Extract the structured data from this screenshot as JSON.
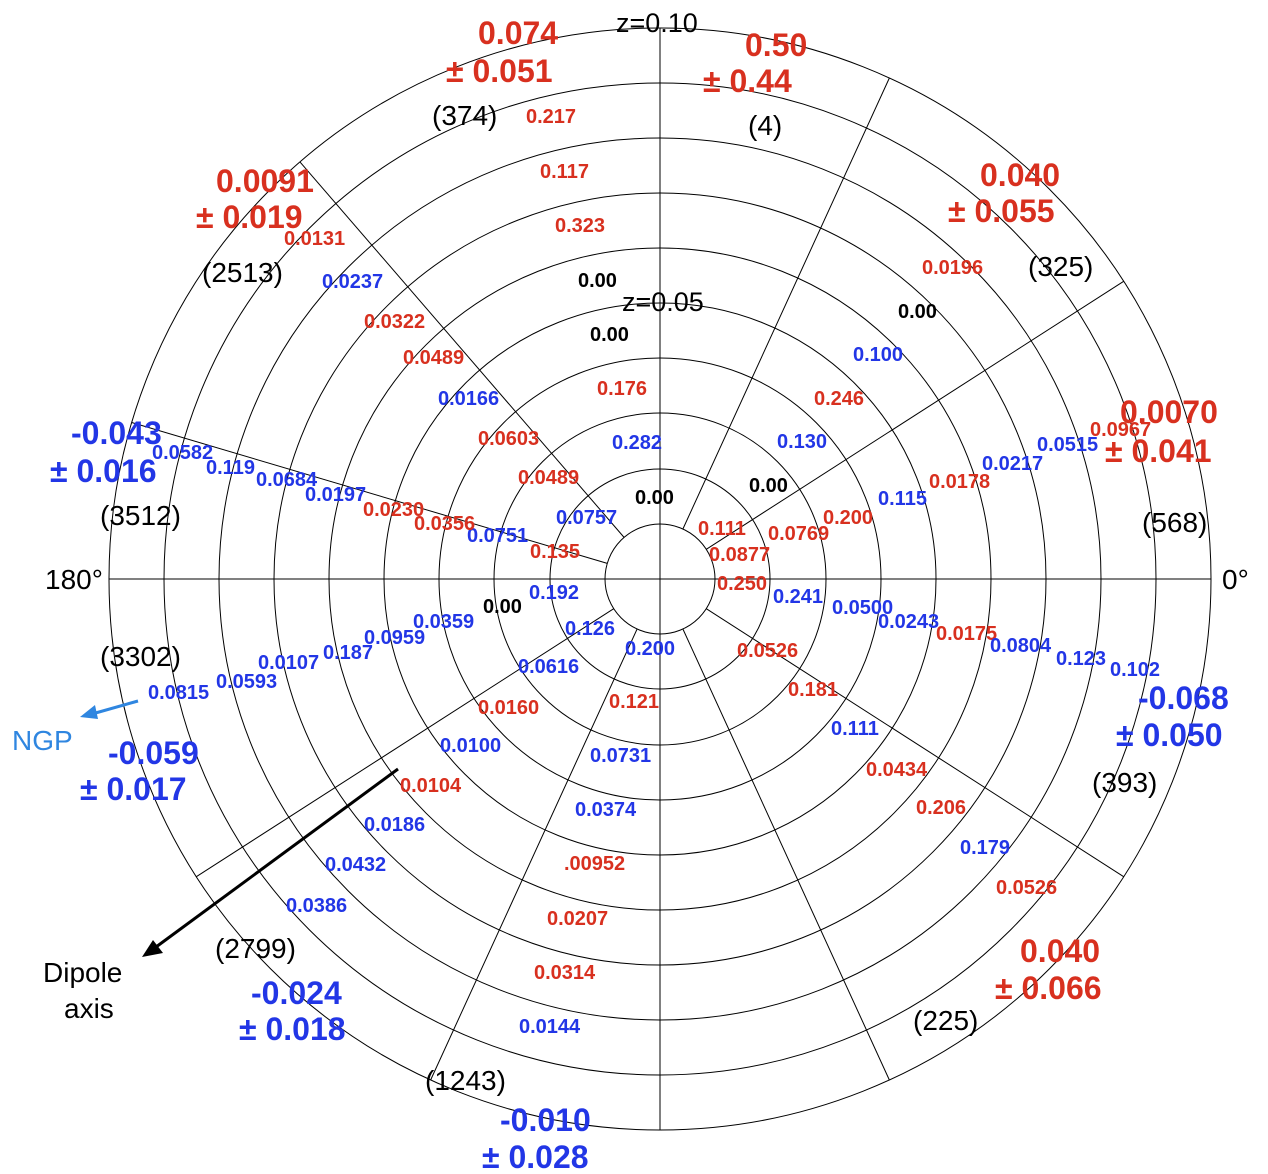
{
  "colors": {
    "red": "#d8301f",
    "blue": "#2236e6",
    "black": "#000000",
    "ngp": "#2f86e0"
  },
  "diagram": {
    "z_outer": "z=0.10",
    "z_inner": "z=0.05",
    "angle_0": "0°",
    "angle_180": "180°",
    "ngp_label": "NGP",
    "dipole_label_1": "Dipole",
    "dipole_label_2": "axis"
  },
  "sectors": [
    {
      "id": "s1",
      "value": "0.50",
      "err": "± 0.44",
      "color": "red",
      "count": "(4)"
    },
    {
      "id": "s2",
      "value": "0.040",
      "err": "± 0.055",
      "color": "red",
      "count": "(325)"
    },
    {
      "id": "s3",
      "value": "0.0070",
      "err": "± 0.041",
      "color": "red",
      "count": "(568)"
    },
    {
      "id": "s4",
      "value": "-0.068",
      "err": "± 0.050",
      "color": "blue",
      "count": "(393)"
    },
    {
      "id": "s5",
      "value": "0.040",
      "err": "± 0.066",
      "color": "red",
      "count": "(225)"
    },
    {
      "id": "s6",
      "value": "-0.010",
      "err": "± 0.028",
      "color": "blue",
      "count": "(1243)"
    },
    {
      "id": "s7",
      "value": "-0.024",
      "err": "± 0.018",
      "color": "blue",
      "count": "(2799)"
    },
    {
      "id": "s8",
      "value": "-0.059",
      "err": "± 0.017",
      "color": "blue",
      "count": "(3302)"
    },
    {
      "id": "s9",
      "value": "-0.043",
      "err": "± 0.016",
      "color": "blue",
      "count": "(3512)"
    },
    {
      "id": "s10",
      "value": "0.0091",
      "err": "± 0.019",
      "color": "red",
      "count": "(2513)"
    },
    {
      "id": "s11",
      "value": "0.074",
      "err": "± 0.051",
      "color": "red",
      "count": "(374)"
    }
  ],
  "cells": [
    {
      "t": "0.217",
      "c": "red"
    },
    {
      "t": "0.117",
      "c": "red"
    },
    {
      "t": "0.323",
      "c": "red"
    },
    {
      "t": "0.00",
      "c": "black"
    },
    {
      "t": "0.00",
      "c": "black"
    },
    {
      "t": "0.176",
      "c": "red"
    },
    {
      "t": "0.282",
      "c": "blue"
    },
    {
      "t": "0.00",
      "c": "black"
    },
    {
      "t": "0.0196",
      "c": "red"
    },
    {
      "t": "0.00",
      "c": "black"
    },
    {
      "t": "0.100",
      "c": "blue"
    },
    {
      "t": "0.246",
      "c": "red"
    },
    {
      "t": "0.130",
      "c": "blue"
    },
    {
      "t": "0.00",
      "c": "black"
    },
    {
      "t": "0.0967",
      "c": "red"
    },
    {
      "t": "0.0515",
      "c": "blue"
    },
    {
      "t": "0.0217",
      "c": "blue"
    },
    {
      "t": "0.0178",
      "c": "red"
    },
    {
      "t": "0.115",
      "c": "blue"
    },
    {
      "t": "0.200",
      "c": "red"
    },
    {
      "t": "0.0769",
      "c": "red"
    },
    {
      "t": "0.111",
      "c": "red"
    },
    {
      "t": "0.0877",
      "c": "red"
    },
    {
      "t": "0.250",
      "c": "red"
    },
    {
      "t": "0.241",
      "c": "blue"
    },
    {
      "t": "0.0500",
      "c": "blue"
    },
    {
      "t": "0.0243",
      "c": "blue"
    },
    {
      "t": "0.0175",
      "c": "red"
    },
    {
      "t": "0.0804",
      "c": "blue"
    },
    {
      "t": "0.123",
      "c": "blue"
    },
    {
      "t": "0.102",
      "c": "blue"
    },
    {
      "t": "0.0526",
      "c": "red"
    },
    {
      "t": "0.181",
      "c": "red"
    },
    {
      "t": "0.111",
      "c": "blue"
    },
    {
      "t": "0.0434",
      "c": "red"
    },
    {
      "t": "0.206",
      "c": "red"
    },
    {
      "t": "0.179",
      "c": "blue"
    },
    {
      "t": "0.0526",
      "c": "red"
    },
    {
      "t": "0.200",
      "c": "blue"
    },
    {
      "t": "0.121",
      "c": "red"
    },
    {
      "t": "0.0731",
      "c": "blue"
    },
    {
      "t": "0.0374",
      "c": "blue"
    },
    {
      "t": ".00952",
      "c": "red"
    },
    {
      "t": "0.0207",
      "c": "red"
    },
    {
      "t": "0.0314",
      "c": "red"
    },
    {
      "t": "0.0144",
      "c": "blue"
    },
    {
      "t": "0.126",
      "c": "blue"
    },
    {
      "t": "0.0616",
      "c": "blue"
    },
    {
      "t": "0.0160",
      "c": "red"
    },
    {
      "t": "0.0100",
      "c": "blue"
    },
    {
      "t": "0.0104",
      "c": "red"
    },
    {
      "t": "0.0186",
      "c": "blue"
    },
    {
      "t": "0.0432",
      "c": "blue"
    },
    {
      "t": "0.0386",
      "c": "blue"
    },
    {
      "t": "0.192",
      "c": "blue"
    },
    {
      "t": "0.00",
      "c": "black"
    },
    {
      "t": "0.0359",
      "c": "blue"
    },
    {
      "t": "0.0959",
      "c": "blue"
    },
    {
      "t": "0.187",
      "c": "blue"
    },
    {
      "t": "0.0107",
      "c": "blue"
    },
    {
      "t": "0.0593",
      "c": "blue"
    },
    {
      "t": "0.0815",
      "c": "blue"
    },
    {
      "t": "0.135",
      "c": "red"
    },
    {
      "t": "0.0757",
      "c": "blue"
    },
    {
      "t": "0.0751",
      "c": "blue"
    },
    {
      "t": "0.0356",
      "c": "red"
    },
    {
      "t": "0.0230",
      "c": "red"
    },
    {
      "t": "0.0197",
      "c": "blue"
    },
    {
      "t": "0.0684",
      "c": "blue"
    },
    {
      "t": "0.119",
      "c": "blue"
    },
    {
      "t": "0.0582",
      "c": "blue"
    },
    {
      "t": "0.0489",
      "c": "red"
    },
    {
      "t": "0.0603",
      "c": "red"
    },
    {
      "t": "0.0166",
      "c": "blue"
    },
    {
      "t": "0.0489",
      "c": "red"
    },
    {
      "t": "0.0322",
      "c": "red"
    },
    {
      "t": "0.0237",
      "c": "blue"
    },
    {
      "t": "0.0131",
      "c": "red"
    }
  ]
}
